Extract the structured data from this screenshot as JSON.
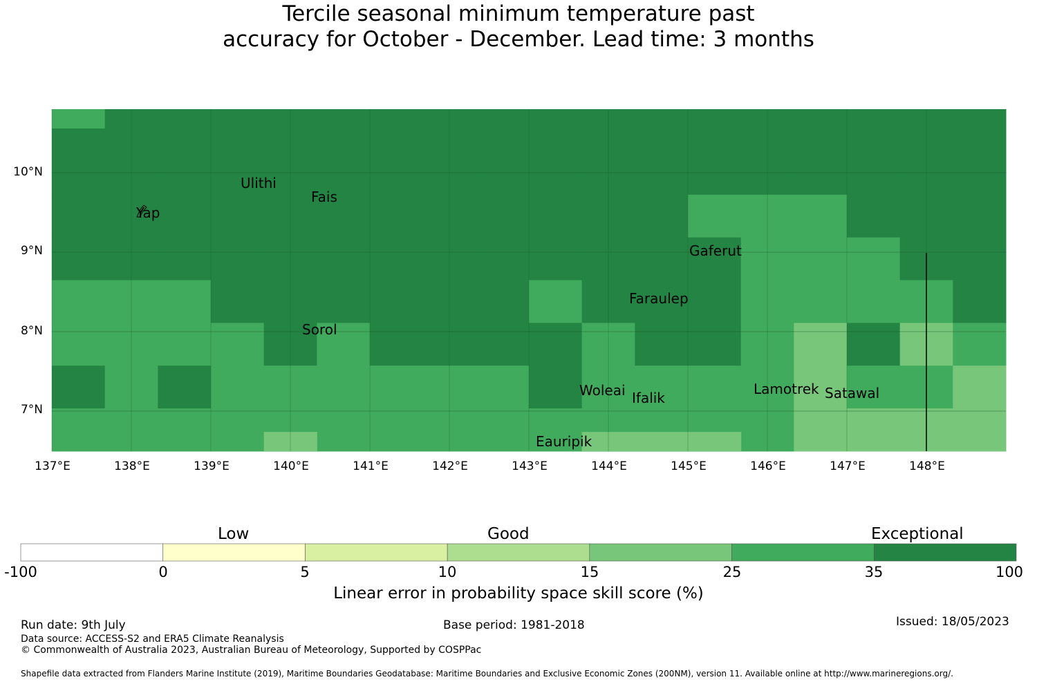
{
  "title": {
    "line1": "Tercile seasonal minimum temperature past",
    "line2": "accuracy for October - December. Lead time: 3 months"
  },
  "map": {
    "lat_labels": [
      "10°N",
      "9°N",
      "8°N",
      "7°N"
    ],
    "lon_labels": [
      "137°E",
      "138°E",
      "139°E",
      "140°E",
      "141°E",
      "142°E",
      "143°E",
      "144°E",
      "145°E",
      "146°E",
      "147°E",
      "148°E"
    ],
    "places": [
      {
        "name": "Ulithi"
      },
      {
        "name": "Fais"
      },
      {
        "name": "Yap"
      },
      {
        "name": "Gaferut"
      },
      {
        "name": "Faraulep"
      },
      {
        "name": "Sorol"
      },
      {
        "name": "Woleai"
      },
      {
        "name": "Ifalik"
      },
      {
        "name": "Lamotrek"
      },
      {
        "name": "Satawal"
      },
      {
        "name": "Eauripik"
      }
    ],
    "colors": {
      "exceptional": "#238443",
      "high_good": "#41ab5d",
      "good": "#78c679",
      "grid": "#1a5e2f"
    }
  },
  "colorbar": {
    "categories": [
      "Low",
      "Good",
      "Exceptional"
    ],
    "ticks": [
      "-100",
      "0",
      "5",
      "10",
      "15",
      "25",
      "35",
      "100"
    ],
    "colors": [
      "#ffffff",
      "#ffffcc",
      "#d9f0a3",
      "#addd8e",
      "#78c679",
      "#41ab5d",
      "#238443"
    ],
    "label": "Linear error in probability space skill score (%)"
  },
  "footer": {
    "run_date": "Run date: 9th July",
    "base_period": "Base period: 1981-2018",
    "issued": "Issued: 18/05/2023",
    "data_source": "Data source: ACCESS-S2 and ERA5 Climate Reanalysis",
    "copyright": "© Commonwealth of Australia 2023, Australian Bureau of Meteorology, Supported by COSPPac",
    "shapefile": "Shapefile data extracted from Flanders Marine Institute (2019), Maritime Boundaries Geodatabase: Maritime Boundaries and Exclusive Economic Zones (200NM), version 11. Available online at http://www.marineregions.org/."
  }
}
